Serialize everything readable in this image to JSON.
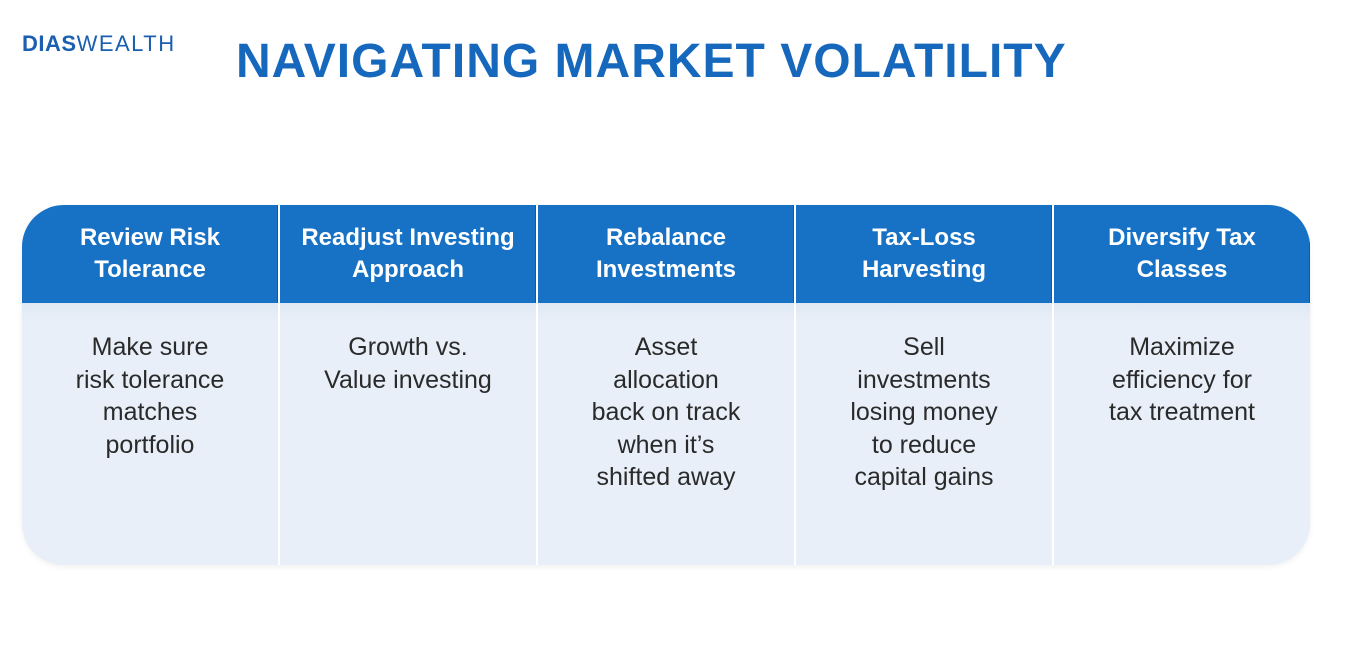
{
  "logo": {
    "strong": "DIAS",
    "light": "WEALTH"
  },
  "title": "NAVIGATING MARKET VOLATILITY",
  "colors": {
    "brand": "#1668bd",
    "header_bg": "#1771c4",
    "body_bg": "#e8eff8"
  },
  "columns": [
    {
      "header_lines": [
        "Review Risk",
        "Tolerance"
      ],
      "body_lines": [
        "Make sure",
        "risk tolerance",
        "matches",
        "portfolio"
      ]
    },
    {
      "header_lines": [
        "Readjust Investing",
        "Approach"
      ],
      "body_lines": [
        "Growth vs.",
        "Value investing"
      ]
    },
    {
      "header_lines": [
        "Rebalance",
        "Investments"
      ],
      "body_lines": [
        "Asset",
        "allocation",
        "back on track",
        "when it’s",
        "shifted away"
      ]
    },
    {
      "header_lines": [
        "Tax-Loss",
        "Harvesting"
      ],
      "body_lines": [
        "Sell",
        "investments",
        "losing money",
        "to reduce",
        "capital gains"
      ]
    },
    {
      "header_lines": [
        "Diversify Tax",
        "Classes"
      ],
      "body_lines": [
        "Maximize",
        "efficiency for",
        "tax treatment"
      ]
    }
  ]
}
